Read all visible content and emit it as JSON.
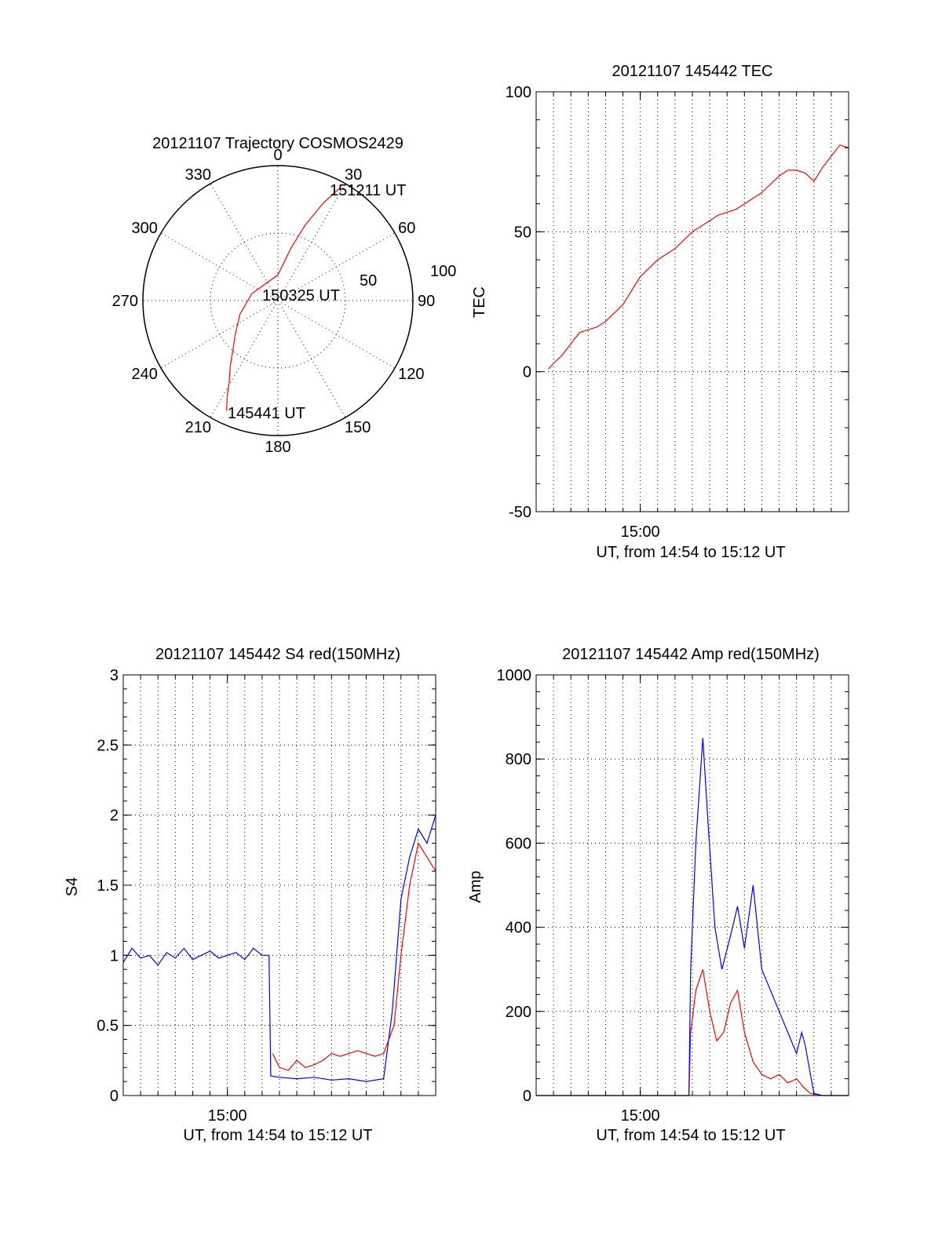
{
  "chart_data": [
    {
      "type": "polar",
      "title": "20121107 Trajectory COSMOS2429",
      "angle_labels": [
        "0",
        "30",
        "60",
        "90",
        "120",
        "150",
        "180",
        "210",
        "240",
        "270",
        "300",
        "330"
      ],
      "radius_labels": [
        "50",
        "100"
      ],
      "series": [
        {
          "color": "#ff0000",
          "points": [
            {
              "az": 205,
              "r": 90
            },
            {
              "az": 208,
              "r": 80
            },
            {
              "az": 211,
              "r": 70
            },
            {
              "az": 216,
              "r": 60
            },
            {
              "az": 222,
              "r": 50
            },
            {
              "az": 232,
              "r": 40
            },
            {
              "az": 250,
              "r": 30
            },
            {
              "az": 285,
              "r": 20
            },
            {
              "az": 0,
              "r": 19
            },
            {
              "az": 14,
              "r": 40
            },
            {
              "az": 20,
              "r": 60
            },
            {
              "az": 25,
              "r": 80
            },
            {
              "az": 29,
              "r": 96
            }
          ]
        }
      ],
      "annotations": [
        "151211 UT",
        "150325 UT",
        "145441 UT"
      ]
    },
    {
      "type": "line",
      "title": "20121107 145442 TEC",
      "xlabel": "UT, from 14:54 to 15:12 UT",
      "ylabel": "TEC",
      "xlim": [
        0,
        18
      ],
      "ylim": [
        -50,
        100
      ],
      "xticks": [
        {
          "value": 6,
          "label": "15:00"
        }
      ],
      "yticks": [
        -50,
        0,
        50,
        100
      ],
      "grid": true,
      "series": [
        {
          "color": "#ff0000",
          "x": [
            0.7,
            1.0,
            1.5,
            2.0,
            2.5,
            3.0,
            3.5,
            4.0,
            4.5,
            5.0,
            5.5,
            6.0,
            6.5,
            7.0,
            7.5,
            8.0,
            8.5,
            9.0,
            9.5,
            10.0,
            10.5,
            11.0,
            11.5,
            12.0,
            12.5,
            13.0,
            13.5,
            14.0,
            14.5,
            15.0,
            15.5,
            16.0,
            16.5,
            17.0,
            17.5,
            18.0
          ],
          "values": [
            1,
            3,
            6,
            10,
            14,
            15,
            16,
            18,
            21,
            24,
            29,
            34,
            37,
            40,
            42,
            44,
            47,
            50,
            52,
            54,
            56,
            57,
            58,
            60,
            62,
            64,
            67,
            70,
            72,
            72,
            71,
            68,
            73,
            77,
            81,
            80
          ]
        }
      ]
    },
    {
      "type": "line",
      "title": "20121107 145442 S4 red(150MHz)",
      "xlabel": "UT, from 14:54 to 15:12 UT",
      "ylabel": "S4",
      "xlim": [
        0,
        18
      ],
      "ylim": [
        0,
        3
      ],
      "xticks": [
        {
          "value": 6,
          "label": "15:00"
        }
      ],
      "yticks": [
        "0",
        "0.5",
        "1",
        "1.5",
        "2",
        "2.5",
        "3"
      ],
      "grid": true,
      "series": [
        {
          "color": "#ff0000",
          "x": [
            8.6,
            9.0,
            9.5,
            10.0,
            10.5,
            11.0,
            11.5,
            12.0,
            12.5,
            13.0,
            13.5,
            14.0,
            14.5,
            15.0,
            15.3,
            15.6,
            16.0,
            16.5,
            17.0,
            17.5,
            18.0
          ],
          "values": [
            0.3,
            0.2,
            0.18,
            0.25,
            0.2,
            0.22,
            0.25,
            0.3,
            0.28,
            0.3,
            0.32,
            0.3,
            0.28,
            0.3,
            0.4,
            0.5,
            1.0,
            1.5,
            1.8,
            1.7,
            1.6
          ]
        },
        {
          "color": "#0000ff",
          "x": [
            0.0,
            0.5,
            1.0,
            1.5,
            2.0,
            2.5,
            3.0,
            3.5,
            4.0,
            4.5,
            5.0,
            5.5,
            6.0,
            6.5,
            7.0,
            7.5,
            8.0,
            8.4,
            8.5,
            9.0,
            10.0,
            11.0,
            12.0,
            13.0,
            14.0,
            15.0,
            15.5,
            16.0,
            16.5,
            17.0,
            17.5,
            18.0
          ],
          "values": [
            0.95,
            1.05,
            0.98,
            1.0,
            0.93,
            1.02,
            0.98,
            1.05,
            0.97,
            1.0,
            1.03,
            0.98,
            1.0,
            1.02,
            0.97,
            1.05,
            1.0,
            1.0,
            0.14,
            0.13,
            0.12,
            0.13,
            0.11,
            0.12,
            0.1,
            0.12,
            0.6,
            1.4,
            1.7,
            1.9,
            1.8,
            2.0
          ]
        }
      ]
    },
    {
      "type": "line",
      "title": "20121107 145442 Amp red(150MHz)",
      "xlabel": "UT, from 14:54 to 15:12 UT",
      "ylabel": "Amp",
      "xlim": [
        0,
        18
      ],
      "ylim": [
        0,
        1000
      ],
      "xticks": [
        {
          "value": 6,
          "label": "15:00"
        }
      ],
      "yticks": [
        0,
        200,
        400,
        600,
        800,
        1000
      ],
      "grid": true,
      "series": [
        {
          "color": "#ff0000",
          "x": [
            0.0,
            4.0,
            8.0,
            8.8,
            8.9,
            9.2,
            9.6,
            10.0,
            10.4,
            10.8,
            11.2,
            11.6,
            12.0,
            12.5,
            13.0,
            13.5,
            14.0,
            14.5,
            15.0,
            15.4,
            15.8,
            16.5,
            18.0
          ],
          "values": [
            0,
            0,
            0,
            0,
            150,
            250,
            300,
            200,
            130,
            150,
            220,
            250,
            150,
            80,
            50,
            40,
            50,
            30,
            40,
            20,
            5,
            0,
            0
          ]
        },
        {
          "color": "#0000ff",
          "x": [
            0.0,
            4.0,
            8.0,
            8.8,
            8.9,
            9.2,
            9.6,
            9.9,
            10.3,
            10.7,
            11.2,
            11.6,
            12.0,
            12.5,
            13.0,
            13.5,
            14.0,
            14.5,
            15.0,
            15.3,
            15.5,
            15.8,
            16.0,
            16.5,
            18.0
          ],
          "values": [
            0,
            0,
            0,
            0,
            300,
            600,
            850,
            650,
            400,
            300,
            380,
            450,
            350,
            500,
            300,
            250,
            200,
            150,
            100,
            150,
            120,
            50,
            5,
            0,
            0
          ]
        }
      ]
    }
  ]
}
